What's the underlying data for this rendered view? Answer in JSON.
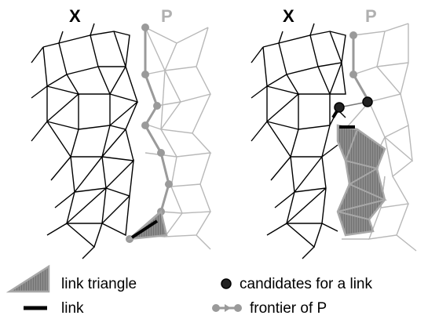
{
  "panel_left": {
    "label_x": "X",
    "label_p": "P"
  },
  "panel_right": {
    "label_x": "X",
    "label_p": "P"
  },
  "legend": {
    "link_triangle": "link triangle",
    "link": "link",
    "candidates": "candidates for a link",
    "frontier": "frontier of P"
  },
  "colors": {
    "mesh_x": "#000000",
    "mesh_p": "#b8b8b8",
    "frontier": "#9a9a9a",
    "triangle_fill": "#707070",
    "triangle_edge": "#a8a8a8"
  }
}
